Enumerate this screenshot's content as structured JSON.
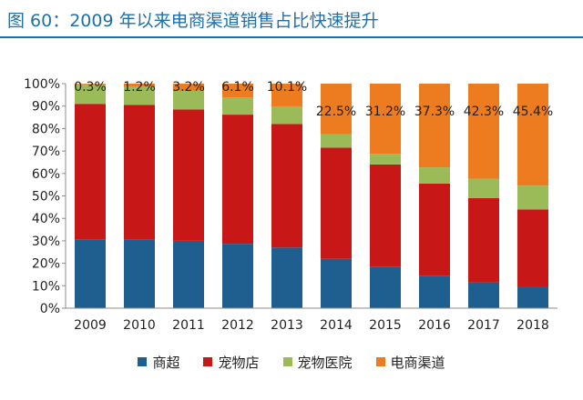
{
  "title": "图 60：2009 年以来电商渠道销售占比快速提升",
  "chart_data": {
    "type": "bar",
    "stacked": true,
    "title": "图 60：2009 年以来电商渠道销售占比快速提升",
    "categories": [
      "2009",
      "2010",
      "2011",
      "2012",
      "2013",
      "2014",
      "2015",
      "2016",
      "2017",
      "2018"
    ],
    "ylim": [
      0,
      100
    ],
    "yticks": [
      "0%",
      "10%",
      "20%",
      "30%",
      "40%",
      "50%",
      "60%",
      "70%",
      "80%",
      "90%",
      "100%"
    ],
    "series": [
      {
        "name": "商超",
        "color": "#1f5f8f",
        "values": [
          30.5,
          30.5,
          30,
          28.7,
          27,
          22,
          18.5,
          14.5,
          11.5,
          9.5
        ]
      },
      {
        "name": "宠物店",
        "color": "#c81717",
        "values": [
          60.5,
          60,
          58.5,
          57.5,
          55,
          49.5,
          45.5,
          41,
          37.5,
          34.5
        ]
      },
      {
        "name": "宠物医院",
        "color": "#9bbb59",
        "values": [
          8.7,
          8.3,
          8.3,
          7.7,
          7.9,
          6,
          4.8,
          7.2,
          8.7,
          10.6
        ]
      },
      {
        "name": "电商渠道",
        "color": "#ec7c1f",
        "values": [
          0.3,
          1.2,
          3.2,
          6.1,
          10.1,
          22.5,
          31.2,
          37.3,
          42.3,
          45.4
        ]
      }
    ],
    "data_labels": [
      "0.3%",
      "1.2%",
      "3.2%",
      "6.1%",
      "10.1%",
      "22.5%",
      "31.2%",
      "37.3%",
      "42.3%",
      "45.4%"
    ],
    "legend_position": "bottom"
  }
}
